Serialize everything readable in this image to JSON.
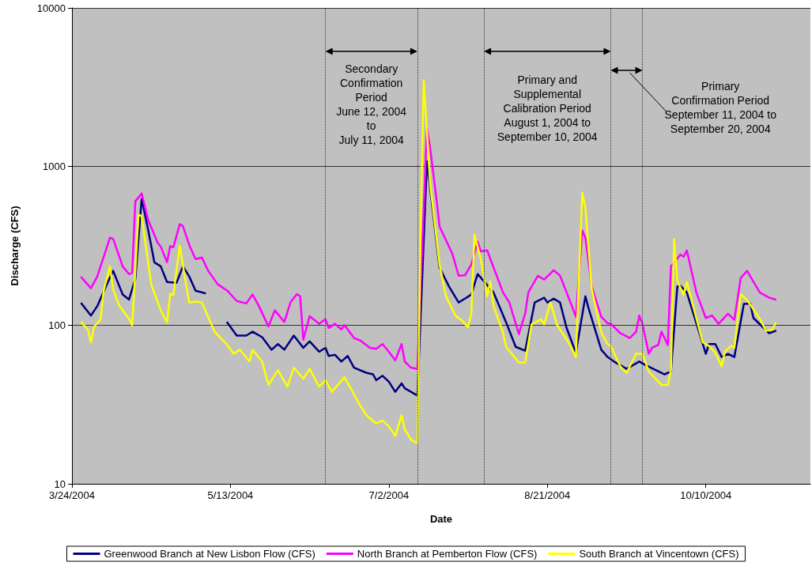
{
  "chart_data": {
    "type": "line",
    "xlabel": "Date",
    "ylabel": "Discharge (CFS)",
    "xlim": [
      "2004-03-24",
      "2004-11-12"
    ],
    "xticks": [
      {
        "value": "2004-03-24",
        "label": "3/24/2004"
      },
      {
        "value": "2004-05-13",
        "label": "5/13/2004"
      },
      {
        "value": "2004-07-02",
        "label": "7/2/2004"
      },
      {
        "value": "2004-08-21",
        "label": "8/21/2004"
      },
      {
        "value": "2004-10-10",
        "label": "10/10/2004"
      }
    ],
    "ylim": [
      10,
      10000
    ],
    "yticks": [
      10,
      100,
      1000,
      10000
    ],
    "log": "y",
    "grid": "y",
    "legend": "bottom",
    "marker": "none",
    "ref_lines": [
      {
        "axis": "x",
        "value": "2004-06-12",
        "label": null,
        "line_style": "dotted",
        "color": "#333333"
      },
      {
        "axis": "x",
        "value": "2004-07-11",
        "label": null,
        "line_style": "dotted",
        "color": "#333333"
      },
      {
        "axis": "x",
        "value": "2004-08-01",
        "label": null,
        "line_style": "dotted",
        "color": "#333333"
      },
      {
        "axis": "x",
        "value": "2004-09-10",
        "label": null,
        "line_style": "dotted",
        "color": "#333333"
      },
      {
        "axis": "x",
        "value": "2004-09-20",
        "label": null,
        "line_style": "dotted",
        "color": "#333333"
      }
    ],
    "annotations": [
      "Secondary\nConfirmation\nPeriod\nJune 12, 2004\nto\nJuly 11, 2004",
      "Primary and\nSupplemental\nCalibration Period\nAugust 1, 2004 to\nSeptember 10, 2004",
      "Primary\nConfirmation Period\nSeptember 11, 2004 to\nSeptember 20, 2004"
    ],
    "series": [
      {
        "name": "Greenwood Branch at New Lisbon Flow (CFS)",
        "color": "#000080",
        "x": [
          "2004-03-27",
          "2004-03-30",
          "2004-04-01",
          "2004-04-04",
          "2004-04-06",
          "2004-04-09",
          "2004-04-11",
          "2004-04-13",
          "2004-04-15",
          "2004-04-17",
          "2004-04-19",
          "2004-04-21",
          "2004-04-23",
          "2004-04-26",
          "2004-04-28",
          "2004-04-30",
          "2004-05-02",
          "2004-05-05",
          "2004-05-06",
          "2004-05-12",
          "2004-05-15",
          "2004-05-18",
          "2004-05-20",
          "2004-05-23",
          "2004-05-26",
          "2004-05-28",
          "2004-05-30",
          "2004-06-02",
          "2004-06-05",
          "2004-06-07",
          "2004-06-10",
          "2004-06-12",
          "2004-06-13",
          "2004-06-15",
          "2004-06-17",
          "2004-06-19",
          "2004-06-21",
          "2004-06-25",
          "2004-06-27",
          "2004-06-28",
          "2004-06-30",
          "2004-07-02",
          "2004-07-04",
          "2004-07-06",
          "2004-07-07",
          "2004-07-11",
          "2004-07-12",
          "2004-07-13",
          "2004-07-14",
          "2004-07-18",
          "2004-07-21",
          "2004-07-24",
          "2004-07-26",
          "2004-07-28",
          "2004-07-30",
          "2004-08-01",
          "2004-08-04",
          "2004-08-08",
          "2004-08-11",
          "2004-08-14",
          "2004-08-17",
          "2004-08-20",
          "2004-08-21",
          "2004-08-23",
          "2004-08-25",
          "2004-08-27",
          "2004-08-30",
          "2004-09-02",
          "2004-09-03",
          "2004-09-07",
          "2004-09-09",
          "2004-09-11",
          "2004-09-15",
          "2004-09-19",
          "2004-09-21",
          "2004-09-27",
          "2004-09-29",
          "2004-10-01",
          "2004-10-02",
          "2004-10-04",
          "2004-10-10",
          "2004-10-11",
          "2004-10-13",
          "2004-10-15",
          "2004-10-17",
          "2004-10-19",
          "2004-10-22",
          "2004-10-24",
          "2004-10-25",
          "2004-10-30",
          "2004-11-01"
        ],
        "values": [
          137,
          115,
          132,
          181,
          220,
          156,
          145,
          196,
          625,
          404,
          249,
          235,
          187,
          185,
          235,
          203,
          165,
          159,
          null,
          104,
          86,
          86,
          91,
          84,
          70,
          76,
          70,
          86,
          72,
          79,
          68,
          72,
          64,
          65,
          59,
          64,
          54,
          50,
          49,
          45,
          48,
          44,
          38,
          43,
          40,
          36,
          111,
          348,
          1080,
          230,
          175,
          139,
          147,
          156,
          210,
          189,
          161,
          104,
          73,
          69,
          139,
          149,
          139,
          147,
          139,
          97,
          67,
          152,
          128,
          70,
          63,
          59,
          53,
          59,
          56,
          49,
          51,
          175,
          177,
          161,
          66,
          76,
          76,
          63,
          66,
          63,
          136,
          137,
          111,
          89,
          92
        ]
      },
      {
        "name": "North Branch at Pemberton Flow (CFS)",
        "color": "#ff00ff",
        "x": [
          "2004-03-27",
          "2004-03-30",
          "2004-04-01",
          "2004-04-05",
          "2004-04-06",
          "2004-04-09",
          "2004-04-11",
          "2004-04-12",
          "2004-04-13",
          "2004-04-15",
          "2004-04-17",
          "2004-04-20",
          "2004-04-21",
          "2004-04-23",
          "2004-04-24",
          "2004-04-25",
          "2004-04-27",
          "2004-04-28",
          "2004-04-30",
          "2004-05-02",
          "2004-05-04",
          "2004-05-06",
          "2004-05-09",
          "2004-05-12",
          "2004-05-15",
          "2004-05-18",
          "2004-05-20",
          "2004-05-22",
          "2004-05-25",
          "2004-05-27",
          "2004-05-30",
          "2004-06-01",
          "2004-06-03",
          "2004-06-04",
          "2004-06-05",
          "2004-06-07",
          "2004-06-10",
          "2004-06-12",
          "2004-06-13",
          "2004-06-15",
          "2004-06-17",
          "2004-06-18",
          "2004-06-21",
          "2004-06-23",
          "2004-06-26",
          "2004-06-28",
          "2004-06-30",
          "2004-07-02",
          "2004-07-04",
          "2004-07-06",
          "2004-07-07",
          "2004-07-09",
          "2004-07-11",
          "2004-07-12",
          "2004-07-13",
          "2004-07-14",
          "2004-07-15",
          "2004-07-17",
          "2004-07-18",
          "2004-07-22",
          "2004-07-24",
          "2004-07-26",
          "2004-07-28",
          "2004-07-30",
          "2004-07-31",
          "2004-08-02",
          "2004-08-07",
          "2004-08-09",
          "2004-08-12",
          "2004-08-14",
          "2004-08-15",
          "2004-08-18",
          "2004-08-20",
          "2004-08-23",
          "2004-08-25",
          "2004-08-28",
          "2004-08-30",
          "2004-09-01",
          "2004-09-02",
          "2004-09-04",
          "2004-09-07",
          "2004-09-09",
          "2004-09-10",
          "2004-09-13",
          "2004-09-16",
          "2004-09-18",
          "2004-09-19",
          "2004-09-20",
          "2004-09-22",
          "2004-09-23",
          "2004-09-25",
          "2004-09-26",
          "2004-09-28",
          "2004-09-29",
          "2004-10-02",
          "2004-10-03",
          "2004-10-04",
          "2004-10-07",
          "2004-10-10",
          "2004-10-12",
          "2004-10-14",
          "2004-10-17",
          "2004-10-19",
          "2004-10-21",
          "2004-10-23",
          "2004-10-27",
          "2004-10-30",
          "2004-11-01"
        ],
        "values": [
          200,
          171,
          203,
          356,
          350,
          235,
          210,
          214,
          604,
          677,
          463,
          332,
          313,
          249,
          315,
          310,
          433,
          422,
          321,
          261,
          267,
          220,
          181,
          165,
          142,
          137,
          156,
          132,
          98,
          124,
          105,
          140,
          157,
          152,
          81,
          114,
          102,
          109,
          96,
          102,
          94,
          100,
          83,
          80,
          72,
          71,
          76,
          68,
          60,
          76,
          59,
          54,
          53,
          171,
          551,
          1750,
          1318,
          625,
          418,
          283,
          205,
          206,
          241,
          336,
          292,
          296,
          161,
          139,
          88,
          118,
          161,
          205,
          194,
          222,
          205,
          144,
          113,
          395,
          356,
          175,
          113,
          103,
          102,
          89,
          83,
          91,
          115,
          102,
          66,
          72,
          75,
          91,
          75,
          235,
          279,
          270,
          296,
          161,
          111,
          115,
          102,
          118,
          108,
          198,
          220,
          161,
          149,
          145
        ]
      },
      {
        "name": "South Branch at Vincentown (CFS)",
        "color": "#ffff00",
        "x": [
          "2004-03-27",
          "2004-03-29",
          "2004-03-30",
          "2004-03-31",
          "2004-04-02",
          "2004-04-03",
          "2004-04-05",
          "2004-04-06",
          "2004-04-08",
          "2004-04-11",
          "2004-04-12",
          "2004-04-14",
          "2004-04-15",
          "2004-04-18",
          "2004-04-21",
          "2004-04-23",
          "2004-04-24",
          "2004-04-25",
          "2004-04-27",
          "2004-04-29",
          "2004-04-30",
          "2004-05-02",
          "2004-05-04",
          "2004-05-08",
          "2004-05-12",
          "2004-05-14",
          "2004-05-16",
          "2004-05-19",
          "2004-05-20",
          "2004-05-23",
          "2004-05-25",
          "2004-05-28",
          "2004-05-31",
          "2004-06-02",
          "2004-06-05",
          "2004-06-07",
          "2004-06-10",
          "2004-06-12",
          "2004-06-14",
          "2004-06-18",
          "2004-06-23",
          "2004-06-25",
          "2004-06-28",
          "2004-06-30",
          "2004-07-02",
          "2004-07-04",
          "2004-07-06",
          "2004-07-07",
          "2004-07-09",
          "2004-07-11",
          "2004-07-12",
          "2004-07-13",
          "2004-07-15",
          "2004-07-18",
          "2004-07-20",
          "2004-07-23",
          "2004-07-25",
          "2004-07-27",
          "2004-07-28",
          "2004-07-29",
          "2004-07-31",
          "2004-08-02",
          "2004-08-03",
          "2004-08-04",
          "2004-08-07",
          "2004-08-08",
          "2004-08-10",
          "2004-08-12",
          "2004-08-14",
          "2004-08-16",
          "2004-08-19",
          "2004-08-20",
          "2004-08-22",
          "2004-08-24",
          "2004-08-28",
          "2004-08-30",
          "2004-09-01",
          "2004-09-02",
          "2004-09-04",
          "2004-09-07",
          "2004-09-09",
          "2004-09-10",
          "2004-09-13",
          "2004-09-15",
          "2004-09-18",
          "2004-09-20",
          "2004-09-22",
          "2004-09-26",
          "2004-09-28",
          "2004-09-29",
          "2004-09-30",
          "2004-10-01",
          "2004-10-03",
          "2004-10-04",
          "2004-10-09",
          "2004-10-11",
          "2004-10-13",
          "2004-10-15",
          "2004-10-16",
          "2004-10-18",
          "2004-10-19",
          "2004-10-21",
          "2004-10-23",
          "2004-10-27",
          "2004-10-29",
          "2004-10-31",
          "2004-11-01"
        ],
        "values": [
          104,
          94,
          78,
          98,
          108,
          165,
          235,
          167,
          132,
          110,
          100,
          497,
          490,
          181,
          124,
          104,
          157,
          155,
          317,
          181,
          139,
          141,
          139,
          91,
          75,
          66,
          70,
          59,
          70,
          59,
          42,
          52,
          41,
          54,
          46,
          53,
          41,
          45,
          38,
          47,
          31,
          27,
          24,
          25,
          23,
          20,
          27,
          22,
          19,
          18,
          400,
          3500,
          785,
          241,
          152,
          115,
          107,
          97,
          118,
          372,
          261,
          152,
          189,
          132,
          90,
          73,
          65,
          58,
          58,
          101,
          109,
          101,
          139,
          101,
          76,
          63,
          684,
          551,
          169,
          90,
          76,
          74,
          55,
          50,
          66,
          66,
          51,
          42,
          42,
          52,
          348,
          191,
          155,
          187,
          78,
          74,
          67,
          55,
          68,
          74,
          72,
          157,
          144,
          110,
          92,
          94,
          103
        ]
      }
    ]
  }
}
